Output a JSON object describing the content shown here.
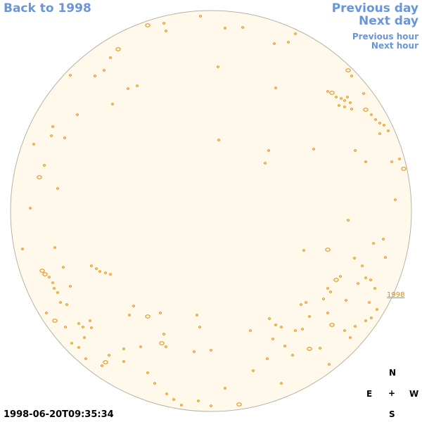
{
  "nav": {
    "back_label": "Back to 1998",
    "prev_day_label": "Previous day",
    "next_day_label": "Next day",
    "prev_hour_label": "Previous hour",
    "next_hour_label": "Next hour"
  },
  "disk": {
    "fill_color": "#fff9ec",
    "limb_color": "#b8b2a6",
    "contour_color": "#e68a00"
  },
  "region_label": "1998",
  "timestamp": "1998-06-20T09:35:34",
  "compass": {
    "n": "N",
    "e": "E",
    "center": "+",
    "w": "W",
    "s": "S"
  }
}
